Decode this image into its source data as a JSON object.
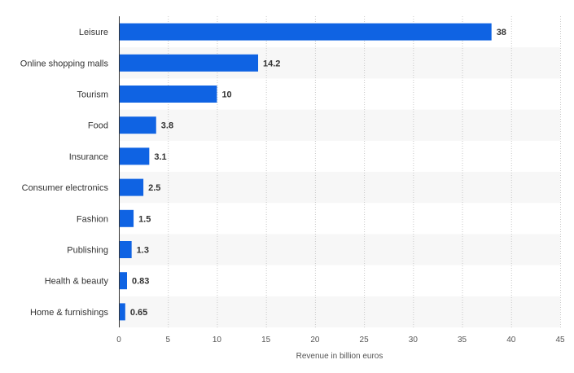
{
  "chart_data": {
    "type": "bar",
    "orientation": "horizontal",
    "categories": [
      "Leisure",
      "Online shopping malls",
      "Tourism",
      "Food",
      "Insurance",
      "Consumer electronics",
      "Fashion",
      "Publishing",
      "Health & beauty",
      "Home & furnishings"
    ],
    "values": [
      38,
      14.2,
      10,
      3.8,
      3.1,
      2.5,
      1.5,
      1.3,
      0.83,
      0.65
    ],
    "value_labels": [
      "38",
      "14.2",
      "10",
      "3.8",
      "3.1",
      "2.5",
      "1.5",
      "1.3",
      "0.83",
      "0.65"
    ],
    "title": "",
    "xlabel": "Revenue in billion euros",
    "ylabel": "",
    "xlim": [
      0,
      45
    ],
    "x_ticks": [
      0,
      5,
      10,
      15,
      20,
      25,
      30,
      35,
      40,
      45
    ],
    "grid": "vertical dotted",
    "legend": "none"
  },
  "colors": {
    "bar": "#0f63e3",
    "band": "#f7f7f7",
    "grid": "#c8c8c8",
    "axis": "#333333"
  }
}
